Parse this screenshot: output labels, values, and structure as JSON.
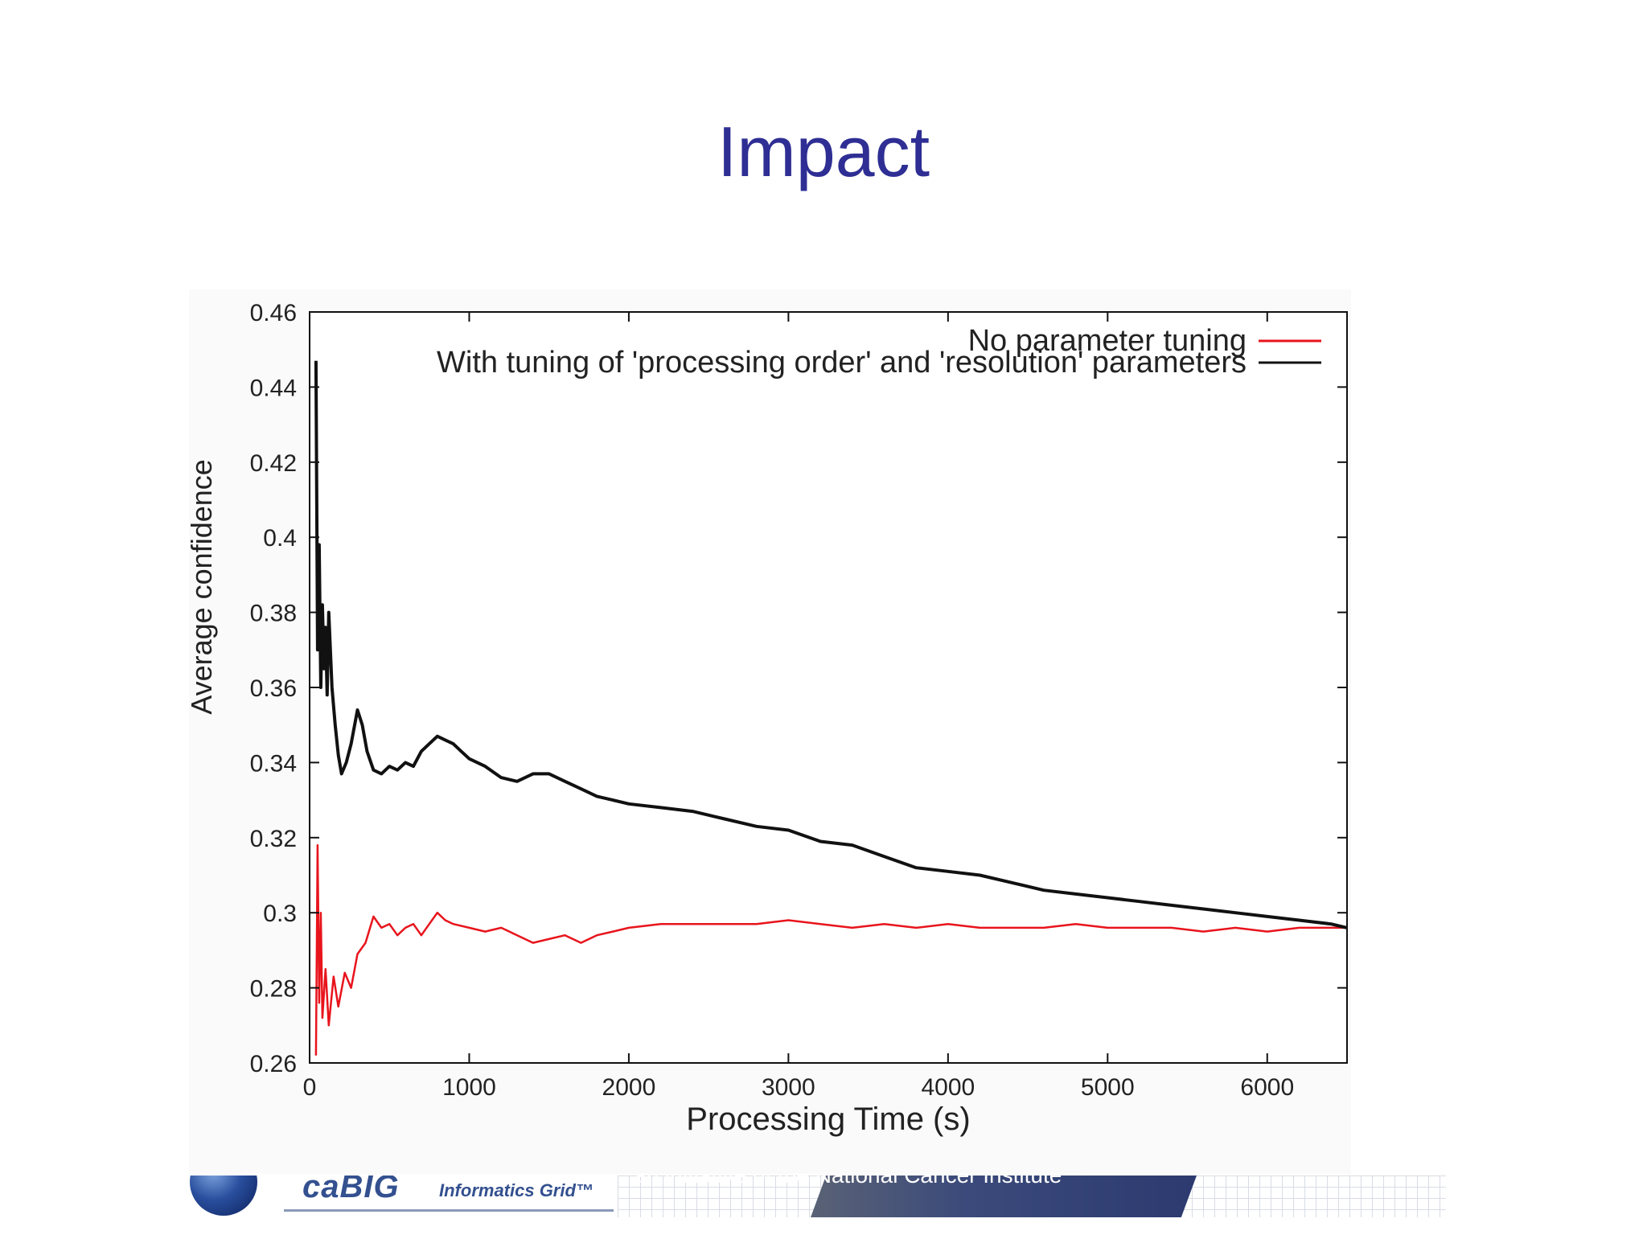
{
  "slide": {
    "title": "Impact"
  },
  "footer": {
    "brand": "caBIG",
    "grid_name": "Informatics Grid™",
    "initiative": "an initiative of the National Cancer Institute"
  },
  "chart_data": {
    "type": "line",
    "title": "",
    "xlabel": "Processing Time (s)",
    "ylabel": "Average confidence",
    "xlim": [
      0,
      6500
    ],
    "ylim": [
      0.26,
      0.46
    ],
    "xticks": [
      0,
      1000,
      2000,
      3000,
      4000,
      5000,
      6000
    ],
    "yticks": [
      0.26,
      0.28,
      0.3,
      0.32,
      0.34,
      0.36,
      0.38,
      0.4,
      0.42,
      0.44,
      0.46
    ],
    "xtick_labels": [
      "0",
      "1000",
      "2000",
      "3000",
      "4000",
      "5000",
      "6000"
    ],
    "ytick_labels": [
      "0.26",
      "0.28",
      "0.3",
      "0.32",
      "0.34",
      "0.36",
      "0.38",
      "0.4",
      "0.42",
      "0.44",
      "0.46"
    ],
    "grid": false,
    "legend_position": "top-right",
    "series": [
      {
        "name": "No parameter tuning",
        "color": "#e8141c",
        "x": [
          40,
          50,
          60,
          70,
          80,
          100,
          120,
          150,
          180,
          220,
          260,
          300,
          350,
          400,
          450,
          500,
          550,
          600,
          650,
          700,
          750,
          800,
          850,
          900,
          1000,
          1100,
          1200,
          1300,
          1400,
          1500,
          1600,
          1700,
          1800,
          1900,
          2000,
          2200,
          2400,
          2600,
          2800,
          3000,
          3200,
          3400,
          3600,
          3800,
          4000,
          4200,
          4400,
          4600,
          4800,
          5000,
          5200,
          5400,
          5600,
          5800,
          6000,
          6200,
          6400,
          6500
        ],
        "y": [
          0.262,
          0.318,
          0.276,
          0.3,
          0.272,
          0.285,
          0.27,
          0.283,
          0.275,
          0.284,
          0.28,
          0.289,
          0.292,
          0.299,
          0.296,
          0.297,
          0.294,
          0.296,
          0.297,
          0.294,
          0.297,
          0.3,
          0.298,
          0.297,
          0.296,
          0.295,
          0.296,
          0.294,
          0.292,
          0.293,
          0.294,
          0.292,
          0.294,
          0.295,
          0.296,
          0.297,
          0.297,
          0.297,
          0.297,
          0.298,
          0.297,
          0.296,
          0.297,
          0.296,
          0.297,
          0.296,
          0.296,
          0.296,
          0.297,
          0.296,
          0.296,
          0.296,
          0.295,
          0.296,
          0.295,
          0.296,
          0.296,
          0.296
        ]
      },
      {
        "name": "With tuning of 'processing order' and 'resolution' parameters",
        "color": "#111111",
        "x": [
          40,
          50,
          60,
          70,
          80,
          90,
          100,
          110,
          120,
          140,
          160,
          180,
          200,
          230,
          260,
          300,
          330,
          360,
          400,
          450,
          500,
          550,
          600,
          650,
          700,
          750,
          800,
          850,
          900,
          950,
          1000,
          1100,
          1200,
          1300,
          1400,
          1500,
          1600,
          1700,
          1800,
          1900,
          2000,
          2200,
          2400,
          2600,
          2800,
          3000,
          3200,
          3400,
          3600,
          3800,
          4000,
          4200,
          4400,
          4600,
          4800,
          5000,
          5200,
          5400,
          5600,
          5800,
          6000,
          6200,
          6400,
          6500
        ],
        "y": [
          0.447,
          0.37,
          0.398,
          0.36,
          0.382,
          0.365,
          0.376,
          0.358,
          0.38,
          0.36,
          0.35,
          0.342,
          0.337,
          0.34,
          0.345,
          0.354,
          0.35,
          0.343,
          0.338,
          0.337,
          0.339,
          0.338,
          0.34,
          0.339,
          0.343,
          0.345,
          0.347,
          0.346,
          0.345,
          0.343,
          0.341,
          0.339,
          0.336,
          0.335,
          0.337,
          0.337,
          0.335,
          0.333,
          0.331,
          0.33,
          0.329,
          0.328,
          0.327,
          0.325,
          0.323,
          0.322,
          0.319,
          0.318,
          0.315,
          0.312,
          0.311,
          0.31,
          0.308,
          0.306,
          0.305,
          0.304,
          0.303,
          0.302,
          0.301,
          0.3,
          0.299,
          0.298,
          0.297,
          0.296
        ]
      }
    ]
  }
}
